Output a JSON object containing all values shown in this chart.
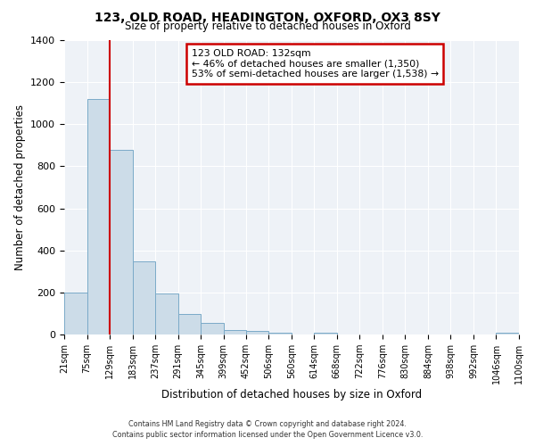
{
  "title": "123, OLD ROAD, HEADINGTON, OXFORD, OX3 8SY",
  "subtitle": "Size of property relative to detached houses in Oxford",
  "xlabel": "Distribution of detached houses by size in Oxford",
  "ylabel": "Number of detached properties",
  "bin_edges": [
    21,
    75,
    129,
    183,
    237,
    291,
    345,
    399,
    452,
    506,
    560,
    614,
    668,
    722,
    776,
    830,
    884,
    938,
    992,
    1046,
    1100
  ],
  "bin_labels": [
    "21sqm",
    "75sqm",
    "129sqm",
    "183sqm",
    "237sqm",
    "291sqm",
    "345sqm",
    "399sqm",
    "452sqm",
    "506sqm",
    "560sqm",
    "614sqm",
    "668sqm",
    "722sqm",
    "776sqm",
    "830sqm",
    "884sqm",
    "938sqm",
    "992sqm",
    "1046sqm",
    "1100sqm"
  ],
  "counts": [
    200,
    1120,
    880,
    350,
    195,
    98,
    55,
    22,
    15,
    10,
    0,
    10,
    0,
    0,
    0,
    0,
    0,
    0,
    0,
    8
  ],
  "bar_color": "#ccdce8",
  "bar_edge_color": "#7aaac8",
  "vline_x": 129,
  "vline_color": "#cc0000",
  "annotation_title": "123 OLD ROAD: 132sqm",
  "annotation_line1": "← 46% of detached houses are smaller (1,350)",
  "annotation_line2": "53% of semi-detached houses are larger (1,538) →",
  "annotation_box_color": "#cc0000",
  "ylim": [
    0,
    1400
  ],
  "yticks": [
    0,
    200,
    400,
    600,
    800,
    1000,
    1200,
    1400
  ],
  "footer1": "Contains HM Land Registry data © Crown copyright and database right 2024.",
  "footer2": "Contains public sector information licensed under the Open Government Licence v3.0.",
  "background_color": "#eef2f7"
}
